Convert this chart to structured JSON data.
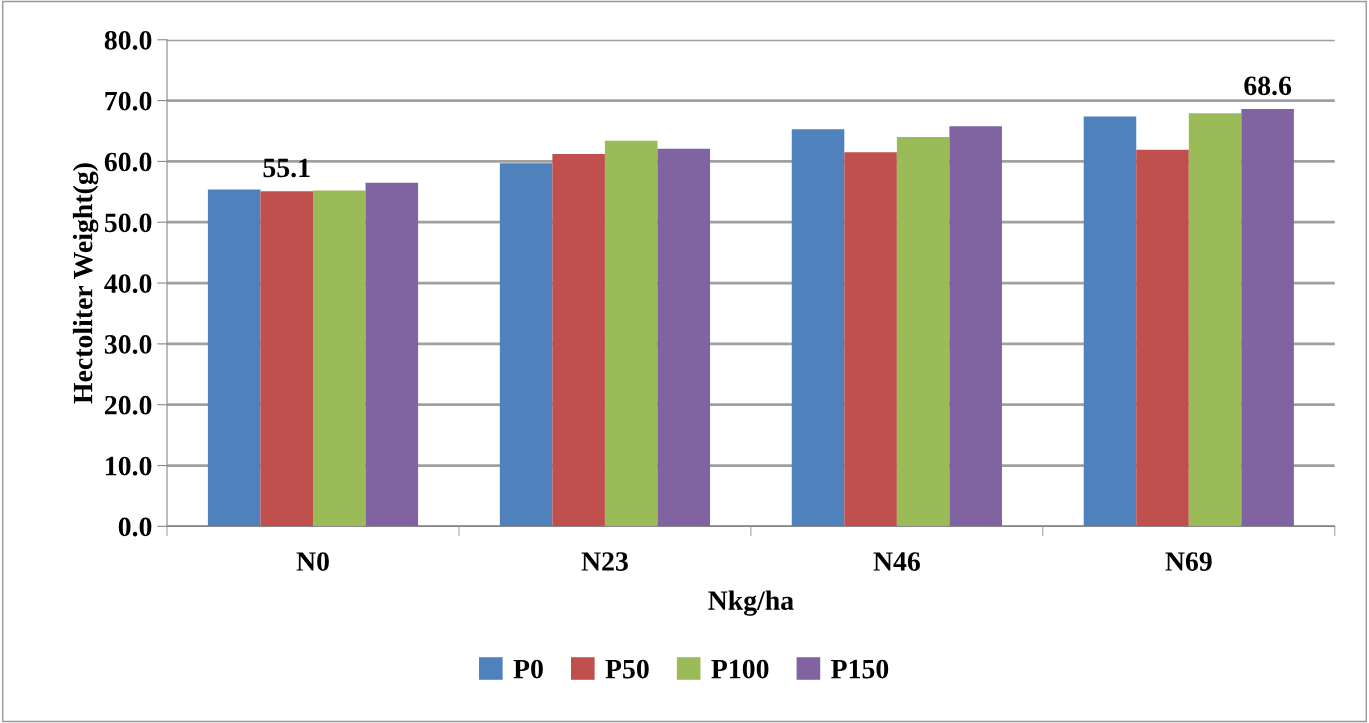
{
  "chart_data": {
    "type": "bar",
    "xlabel": "Nkg/ha",
    "ylabel": "Hectoliter Weight(g)",
    "categories": [
      "N0",
      "N23",
      "N46",
      "N69"
    ],
    "series": [
      {
        "name": "P0",
        "color": "#4f81bd",
        "values": [
          55.4,
          59.7,
          65.3,
          67.4
        ]
      },
      {
        "name": "P50",
        "color": "#c0504d",
        "values": [
          55.1,
          61.2,
          61.5,
          61.9
        ],
        "value_labels": [
          "55.1",
          null,
          null,
          null
        ]
      },
      {
        "name": "P100",
        "color": "#9bbb59",
        "values": [
          55.2,
          63.4,
          64.0,
          67.9
        ]
      },
      {
        "name": "P150",
        "color": "#8064a2",
        "values": [
          56.5,
          62.1,
          65.8,
          68.6
        ],
        "value_labels": [
          null,
          null,
          null,
          "68.6"
        ]
      }
    ],
    "ylim": [
      0,
      80
    ],
    "yticks": [
      {
        "value": 0,
        "label": "0.0"
      },
      {
        "value": 10,
        "label": "10.0"
      },
      {
        "value": 20,
        "label": "20.0"
      },
      {
        "value": 30,
        "label": "30.0"
      },
      {
        "value": 40,
        "label": "40.0"
      },
      {
        "value": 50,
        "label": "50.0"
      },
      {
        "value": 60,
        "label": "60.0"
      },
      {
        "value": 70,
        "label": "70.0"
      },
      {
        "value": 80,
        "label": "80.0"
      }
    ],
    "grid": "y",
    "legend": "bottom"
  }
}
